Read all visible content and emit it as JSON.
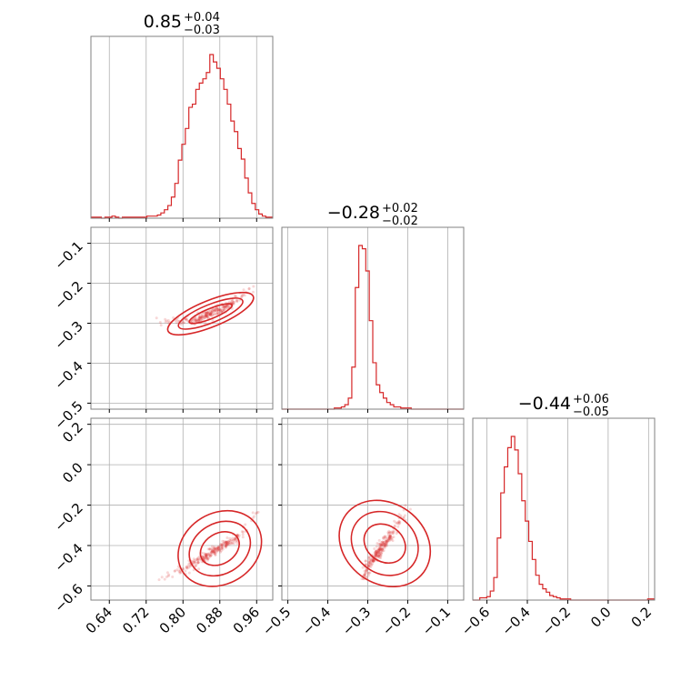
{
  "style": {
    "color": "#d62728",
    "grid_color": "#b0b0b0",
    "frame_color": "#808080"
  },
  "chart_data": {
    "type": "corner",
    "parameters": [
      {
        "median": 0.85,
        "title": {
          "main": "0.85",
          "plus": "+0.04",
          "minus": "−0.03"
        }
      },
      {
        "median": -0.28,
        "title": {
          "main": "−0.28",
          "plus": "+0.02",
          "minus": "−0.02"
        }
      },
      {
        "median": -0.44,
        "title": {
          "main": "−0.44",
          "plus": "+0.06",
          "minus": "−0.05"
        }
      }
    ],
    "ranges": [
      [
        0.6,
        0.995
      ],
      [
        -0.515,
        -0.06
      ],
      [
        -0.67,
        0.23
      ]
    ],
    "ticks": [
      {
        "values": [
          0.64,
          0.72,
          0.8,
          0.88,
          0.96
        ],
        "labels": [
          "0.64",
          "0.72",
          "0.80",
          "0.88",
          "0.96"
        ]
      },
      {
        "values": [
          -0.5,
          -0.4,
          -0.3,
          -0.2,
          -0.1
        ],
        "labels": [
          "−0.5",
          "−0.4",
          "−0.3",
          "−0.2",
          "−0.1"
        ]
      },
      {
        "values": [
          -0.6,
          -0.4,
          -0.2,
          0.0,
          0.2
        ],
        "labels": [
          "−0.6",
          "−0.4",
          "−0.2",
          "0.0",
          "0.2"
        ]
      }
    ],
    "y_ticks": [
      null,
      {
        "values": [
          -0.1,
          -0.2,
          -0.3,
          -0.4,
          -0.5
        ],
        "labels": [
          "−0.1",
          "−0.2",
          "−0.3",
          "−0.4",
          "−0.5"
        ]
      },
      {
        "values": [
          0.2,
          0.0,
          -0.2,
          -0.4,
          -0.6
        ],
        "labels": [
          "0.2",
          "0.0",
          "−0.2",
          "−0.4",
          "−0.6"
        ]
      }
    ],
    "histograms": [
      {
        "param": 0,
        "bin_edges": [
          0.6,
          0.995
        ],
        "counts": [
          1,
          1,
          1,
          0,
          1,
          1,
          2,
          1,
          0,
          1,
          1,
          1,
          1,
          1,
          1,
          1,
          2,
          2,
          2,
          3,
          5,
          8,
          12,
          20,
          33,
          55,
          70,
          85,
          105,
          108,
          122,
          128,
          132,
          138,
          155,
          148,
          142,
          132,
          122,
          108,
          92,
          82,
          66,
          56,
          38,
          24,
          14,
          8,
          4,
          2,
          1,
          1
        ]
      },
      {
        "param": 1,
        "bin_edges": [
          -0.515,
          -0.06
        ],
        "counts": [
          0,
          0,
          0,
          0,
          0,
          0,
          0,
          0,
          0,
          0,
          0,
          0,
          0,
          0,
          0,
          1,
          1,
          2,
          4,
          10,
          38,
          110,
          148,
          145,
          125,
          80,
          42,
          22,
          15,
          10,
          6,
          4,
          2,
          2,
          1,
          1,
          1,
          0,
          0,
          0,
          0,
          0,
          0,
          0,
          0,
          0,
          0,
          0,
          0,
          0,
          0,
          0
        ]
      },
      {
        "param": 2,
        "bin_edges": [
          -0.67,
          0.23
        ],
        "counts": [
          0,
          0,
          2,
          2,
          3,
          8,
          20,
          55,
          95,
          118,
          135,
          145,
          133,
          112,
          88,
          70,
          52,
          36,
          22,
          14,
          10,
          7,
          4,
          3,
          2,
          1,
          1,
          1,
          0,
          0,
          0,
          0,
          0,
          0,
          0,
          0,
          0,
          0,
          0,
          0,
          0,
          0,
          0,
          0,
          0,
          0,
          0,
          0,
          0,
          0,
          1,
          1
        ]
      }
    ],
    "joint_2d": [
      {
        "x_param": 0,
        "y_param": 1,
        "ridge": [
          [
            0.75,
            -0.295
          ],
          [
            0.8,
            -0.298
          ],
          [
            0.83,
            -0.29
          ],
          [
            0.86,
            -0.275
          ],
          [
            0.89,
            -0.262
          ],
          [
            0.92,
            -0.238
          ],
          [
            0.955,
            -0.205
          ]
        ],
        "contour_levels": [
          {
            "along": 0.05,
            "across": 0.005
          },
          {
            "along": 0.075,
            "across": 0.009
          },
          {
            "along": 0.1,
            "across": 0.013
          }
        ]
      },
      {
        "x_param": 0,
        "y_param": 2,
        "ridge": [
          [
            0.76,
            -0.56
          ],
          [
            0.8,
            -0.52
          ],
          [
            0.84,
            -0.47
          ],
          [
            0.88,
            -0.41
          ],
          [
            0.92,
            -0.36
          ],
          [
            0.96,
            -0.25
          ]
        ],
        "contour_levels": [
          {
            "along": 0.045,
            "across": 0.015
          },
          {
            "along": 0.07,
            "across": 0.025
          },
          {
            "along": 0.095,
            "across": 0.035
          }
        ]
      },
      {
        "x_param": 1,
        "y_param": 2,
        "ridge": [
          [
            -0.31,
            -0.56
          ],
          [
            -0.3,
            -0.51
          ],
          [
            -0.28,
            -0.45
          ],
          [
            -0.26,
            -0.39
          ],
          [
            -0.235,
            -0.33
          ],
          [
            -0.2,
            -0.22
          ]
        ],
        "contour_levels": [
          {
            "along": 0.045,
            "across": 0.025
          },
          {
            "along": 0.075,
            "across": 0.04
          },
          {
            "along": 0.1,
            "across": 0.055
          }
        ]
      }
    ]
  }
}
